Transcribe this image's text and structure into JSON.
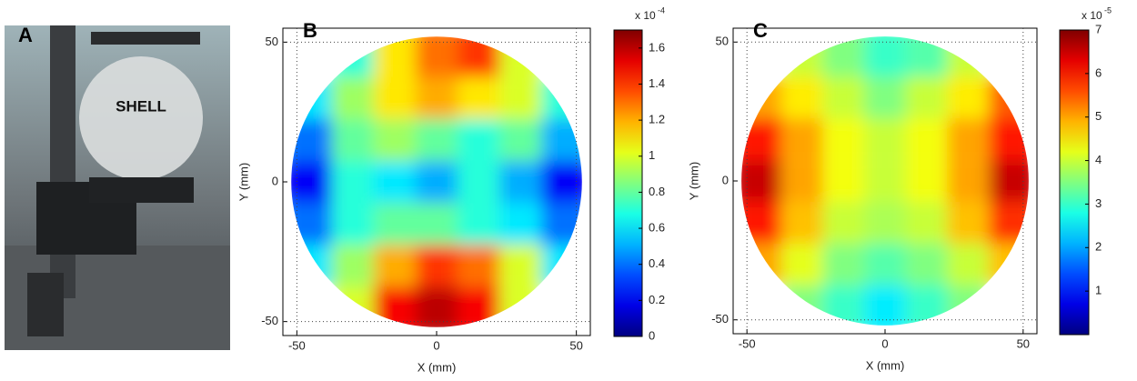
{
  "photo": {
    "label": "A",
    "caption": "SHELL"
  },
  "chart_data": [
    {
      "type": "heatmap",
      "panel_label": "B",
      "xlabel": "X (mm)",
      "ylabel": "Y (mm)",
      "xlim": [
        -55,
        55
      ],
      "ylim": [
        -55,
        55
      ],
      "xticks": [
        -50,
        0,
        50
      ],
      "yticks": [
        -50,
        0,
        50
      ],
      "colormap": "jet",
      "radius": 52,
      "x": [
        -45,
        -30,
        -15,
        0,
        15,
        30,
        45
      ],
      "y": [
        45,
        30,
        15,
        0,
        -15,
        -30,
        -45
      ],
      "z": [
        [
          null,
          0.7,
          1.1,
          1.3,
          1.4,
          1.0,
          null
        ],
        [
          0.6,
          0.9,
          1.1,
          1.2,
          1.1,
          1.0,
          0.7
        ],
        [
          0.4,
          0.8,
          0.9,
          0.8,
          0.7,
          0.8,
          0.5
        ],
        [
          0.2,
          0.7,
          0.6,
          0.5,
          0.7,
          0.5,
          0.2
        ],
        [
          0.4,
          0.7,
          0.8,
          0.8,
          0.7,
          0.6,
          0.4
        ],
        [
          0.6,
          0.9,
          1.2,
          1.4,
          1.3,
          1.0,
          0.6
        ],
        [
          null,
          1.0,
          1.5,
          1.6,
          1.5,
          1.0,
          null
        ]
      ],
      "clim": [
        0,
        1.7
      ],
      "cticks": [
        0,
        0.2,
        0.4,
        0.6,
        0.8,
        1,
        1.2,
        1.4,
        1.6
      ],
      "colorbar_label": "x 10",
      "colorbar_exponent": "-4"
    },
    {
      "type": "heatmap",
      "panel_label": "C",
      "xlabel": "X (mm)",
      "ylabel": "Y (mm)",
      "xlim": [
        -55,
        55
      ],
      "ylim": [
        -55,
        55
      ],
      "xticks": [
        -50,
        0,
        50
      ],
      "yticks": [
        -50,
        0,
        50
      ],
      "colormap": "jet",
      "radius": 52,
      "x": [
        -45,
        -30,
        -15,
        0,
        15,
        30,
        45
      ],
      "y": [
        45,
        30,
        15,
        0,
        -15,
        -30,
        -45
      ],
      "z": [
        [
          null,
          4.0,
          3.5,
          3.0,
          3.2,
          4.0,
          null
        ],
        [
          5.0,
          4.5,
          4.0,
          3.5,
          4.0,
          4.5,
          5.5
        ],
        [
          6.0,
          5.0,
          4.3,
          4.0,
          4.3,
          5.0,
          6.0
        ],
        [
          6.5,
          5.0,
          4.3,
          4.0,
          4.3,
          5.0,
          6.5
        ],
        [
          6.0,
          4.8,
          4.0,
          3.8,
          4.0,
          4.8,
          5.8
        ],
        [
          5.0,
          4.2,
          3.5,
          3.2,
          3.5,
          4.0,
          4.8
        ],
        [
          null,
          3.5,
          3.0,
          2.5,
          3.0,
          3.5,
          null
        ]
      ],
      "clim": [
        0,
        7
      ],
      "cticks": [
        1,
        2,
        3,
        4,
        5,
        6,
        7
      ],
      "colorbar_label": "x 10",
      "colorbar_exponent": "-5"
    }
  ]
}
